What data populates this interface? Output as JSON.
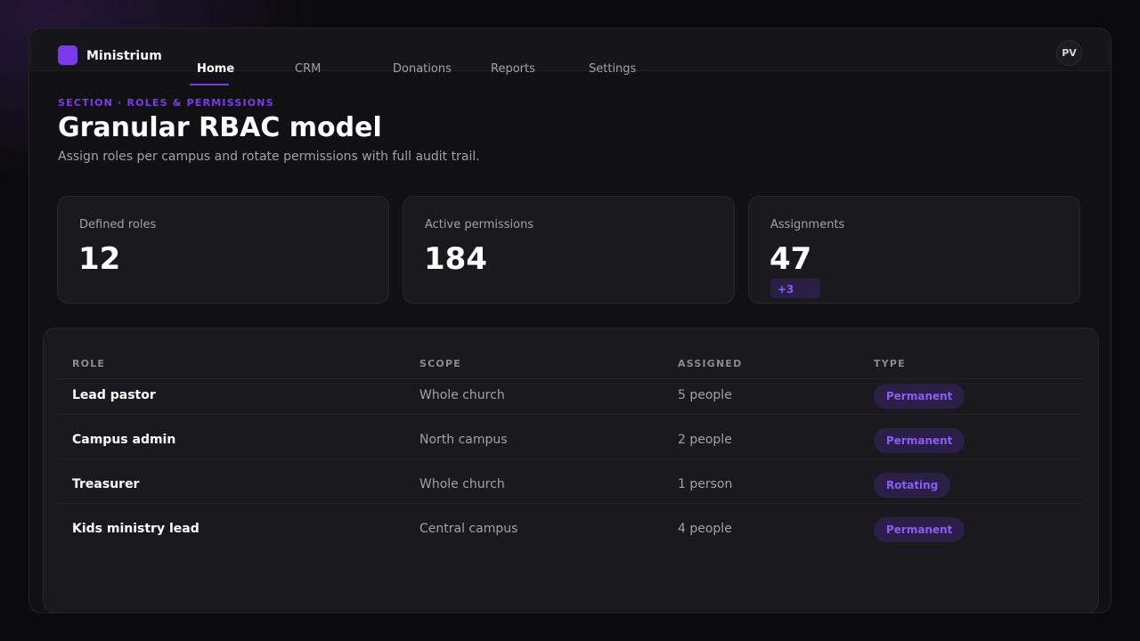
{
  "app": {
    "brand": "Ministrium",
    "avatar_initials": "PV",
    "accent_color": "#7c3aed"
  },
  "nav": {
    "tabs": [
      {
        "label": "Home",
        "active": true
      },
      {
        "label": "CRM",
        "active": false
      },
      {
        "label": "Donations",
        "active": false
      },
      {
        "label": "Reports",
        "active": false
      },
      {
        "label": "Settings",
        "active": false
      }
    ]
  },
  "page": {
    "eyebrow": "SECTION · ROLES & PERMISSIONS",
    "title": "Granular RBAC model",
    "subtitle": "Assign roles per campus and rotate permissions with full audit trail."
  },
  "stats": [
    {
      "label": "Defined roles",
      "value": "12"
    },
    {
      "label": "Active permissions",
      "value": "184"
    },
    {
      "label": "Assignments",
      "value": "47",
      "delta": "+3"
    }
  ],
  "table": {
    "headers": [
      "ROLE",
      "SCOPE",
      "ASSIGNED",
      "TYPE"
    ],
    "rows": [
      {
        "role": "Lead pastor",
        "scope": "Whole church",
        "assigned": "5 people",
        "type": "Permanent"
      },
      {
        "role": "Campus admin",
        "scope": "North campus",
        "assigned": "2 people",
        "type": "Permanent"
      },
      {
        "role": "Treasurer",
        "scope": "Whole church",
        "assigned": "1 person",
        "type": "Rotating"
      },
      {
        "role": "Kids ministry lead",
        "scope": "Central campus",
        "assigned": "4 people",
        "type": "Permanent"
      }
    ]
  }
}
